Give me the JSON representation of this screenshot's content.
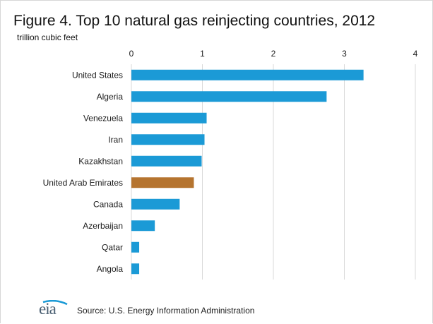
{
  "chart_data": {
    "type": "bar",
    "orientation": "horizontal",
    "title": "Figure 4. Top 10 natural gas reinjecting countries, 2012",
    "subtitle": "trillion cubic feet",
    "categories": [
      "United States",
      "Algeria",
      "Venezuela",
      "Iran",
      "Kazakhstan",
      "United Arab Emirates",
      "Canada",
      "Azerbaijan",
      "Qatar",
      "Angola"
    ],
    "values": [
      3.27,
      2.75,
      1.06,
      1.03,
      0.99,
      0.88,
      0.68,
      0.33,
      0.11,
      0.11
    ],
    "bar_colors": [
      "#1b9ad6",
      "#1b9ad6",
      "#1b9ad6",
      "#1b9ad6",
      "#1b9ad6",
      "#b5742f",
      "#1b9ad6",
      "#1b9ad6",
      "#1b9ad6",
      "#1b9ad6"
    ],
    "xlim": [
      0,
      4
    ],
    "xticks": [
      "0",
      "1",
      "2",
      "3",
      "4"
    ],
    "grid": true,
    "axis_position": "top"
  },
  "footer": {
    "logo_text": "eia",
    "source": "Source: U.S. Energy Information Administration"
  },
  "colors": {
    "bar": "#1b9ad6",
    "highlight": "#b5742f",
    "gridline": "#d9d9d9"
  }
}
